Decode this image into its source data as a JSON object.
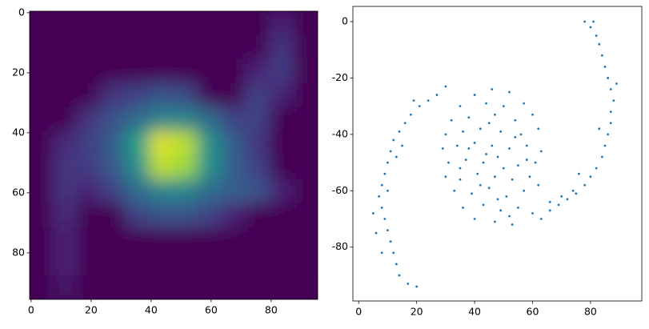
{
  "chart_data": [
    {
      "type": "heatmap",
      "colormap": "viridis",
      "xlim": [
        -0.5,
        95.5
      ],
      "ylim": [
        95.5,
        -0.5
      ],
      "xticks": [
        0,
        20,
        40,
        60,
        80
      ],
      "yticks": [
        0,
        20,
        40,
        60,
        80
      ],
      "z": [
        [
          0,
          0,
          0,
          0,
          0,
          0,
          0,
          0,
          0,
          0,
          0.1,
          0
        ],
        [
          0,
          0,
          0,
          0,
          0,
          0,
          0,
          0,
          0,
          0,
          0.15,
          0
        ],
        [
          0,
          0,
          0,
          0,
          0,
          0,
          0,
          0,
          0,
          0.1,
          0.18,
          0
        ],
        [
          0,
          0,
          0,
          0.15,
          0.2,
          0.25,
          0.22,
          0,
          0,
          0.2,
          0.1,
          0
        ],
        [
          0,
          0,
          0.15,
          0.25,
          0.35,
          0.45,
          0.45,
          0.35,
          0.2,
          0.2,
          0,
          0
        ],
        [
          0,
          0.12,
          0.2,
          0.3,
          0.55,
          0.95,
          0.9,
          0.5,
          0.3,
          0.15,
          0,
          0
        ],
        [
          0,
          0.15,
          0.18,
          0.28,
          0.5,
          0.9,
          0.85,
          0.5,
          0.3,
          0.2,
          0,
          0
        ],
        [
          0,
          0.15,
          0.1,
          0.2,
          0.35,
          0.45,
          0.45,
          0.35,
          0.3,
          0.25,
          0.1,
          0
        ],
        [
          0,
          0.12,
          0,
          0,
          0.2,
          0.25,
          0.25,
          0.2,
          0.1,
          0,
          0,
          0
        ],
        [
          0,
          0.1,
          0,
          0,
          0,
          0,
          0,
          0,
          0,
          0,
          0,
          0
        ],
        [
          0,
          0.1,
          0,
          0,
          0,
          0,
          0,
          0,
          0,
          0,
          0,
          0
        ],
        [
          0,
          0.06,
          0,
          0,
          0,
          0,
          0,
          0,
          0,
          0,
          0,
          0
        ]
      ]
    },
    {
      "type": "scatter",
      "color": "#1f77b4",
      "xlim": [
        -2,
        97.7
      ],
      "ylim": [
        -99.1,
        5.4
      ],
      "xticks": [
        0,
        20,
        40,
        60,
        80
      ],
      "yticks": [
        0,
        -20,
        -40,
        -60,
        -80
      ],
      "x": [
        46,
        40,
        52,
        35,
        44,
        50,
        57,
        32,
        38,
        47,
        54,
        60,
        30,
        36,
        42,
        49,
        56,
        62,
        29,
        34,
        40,
        46,
        52,
        58,
        63,
        31,
        37,
        43,
        48,
        55,
        61,
        30,
        35,
        41,
        47,
        53,
        59,
        33,
        39,
        45,
        51,
        57,
        62,
        36,
        43,
        49,
        55,
        40,
        47,
        53,
        44,
        50,
        42,
        38,
        54,
        45,
        48,
        58,
        35,
        52,
        30,
        27,
        24,
        21,
        18,
        16,
        14,
        12,
        11,
        10,
        9,
        8,
        7,
        8,
        9,
        10,
        11,
        12,
        13,
        14,
        17,
        20,
        5,
        6,
        19,
        13,
        15,
        10,
        8,
        60,
        63,
        66,
        69,
        72,
        75,
        78,
        80,
        82,
        84,
        85,
        86,
        87,
        87,
        88,
        87,
        86,
        85,
        84,
        83,
        82,
        80,
        78,
        81,
        74,
        70,
        89,
        83,
        76,
        66
      ],
      "y": [
        -24,
        -26,
        -25,
        -30,
        -29,
        -30,
        -29,
        -35,
        -34,
        -33,
        -35,
        -33,
        -40,
        -39,
        -38,
        -39,
        -40,
        -38,
        -45,
        -44,
        -43,
        -44,
        -45,
        -44,
        -46,
        -50,
        -49,
        -50,
        -48,
        -51,
        -50,
        -55,
        -56,
        -54,
        -55,
        -56,
        -55,
        -60,
        -61,
        -59,
        -62,
        -60,
        -58,
        -66,
        -65,
        -67,
        -66,
        -70,
        -71,
        -72,
        -47,
        -52,
        -58,
        -45,
        -41,
        -36,
        -63,
        -49,
        -52,
        -69,
        -23,
        -26,
        -28,
        -30,
        -33,
        -36,
        -39,
        -42,
        -46,
        -50,
        -54,
        -58,
        -62,
        -66,
        -70,
        -74,
        -78,
        -82,
        -86,
        -90,
        -93,
        -94,
        -68,
        -75,
        -28,
        -48,
        -44,
        -60,
        -82,
        -68,
        -70,
        -67,
        -65,
        -63,
        -61,
        -58,
        -55,
        -52,
        -48,
        -44,
        -40,
        -36,
        -32,
        -28,
        -24,
        -20,
        -16,
        -12,
        -8,
        -5,
        -2,
        0,
        0,
        -60,
        -62,
        -22,
        -38,
        -54,
        -64
      ]
    }
  ]
}
